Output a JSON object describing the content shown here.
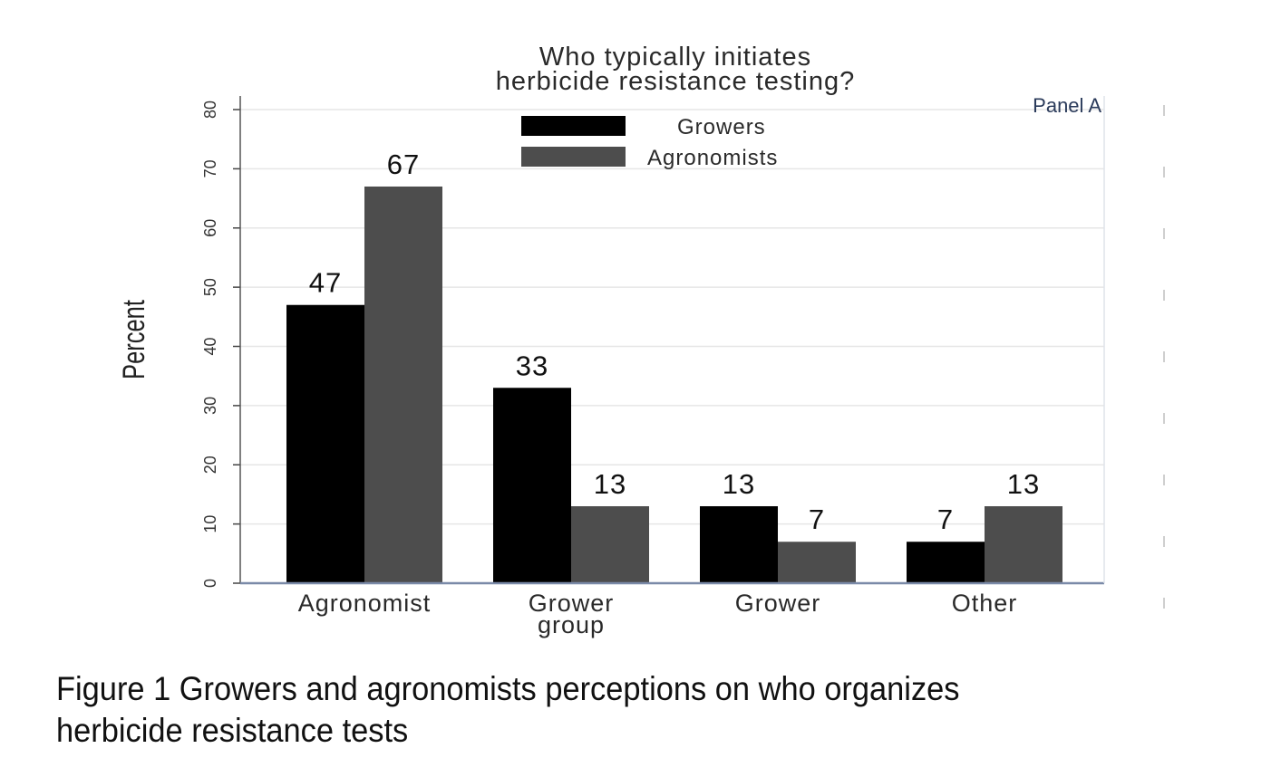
{
  "chart_data": {
    "type": "bar",
    "title_lines": [
      "Who typically initiates",
      "herbicide resistance testing?"
    ],
    "panel_label": "Panel A",
    "ylabel": "Percent",
    "xlabel": "",
    "ylim": [
      0,
      80
    ],
    "yticks": [
      "0",
      "10",
      "20",
      "30",
      "40",
      "50",
      "60",
      "70",
      "80"
    ],
    "categories": [
      [
        "Agronomist"
      ],
      [
        "Grower",
        "group"
      ],
      [
        "Grower"
      ],
      [
        "Other"
      ]
    ],
    "series": [
      {
        "name": "Growers",
        "color": "#000000",
        "values": [
          47,
          33,
          13,
          7
        ]
      },
      {
        "name": "Agronomists",
        "color": "#4d4d4d",
        "values": [
          67,
          13,
          7,
          13
        ]
      }
    ],
    "grid": true,
    "legend_position": "top-center"
  },
  "caption": {
    "line1": "Figure 1 Growers and agronomists perceptions on who organizes",
    "line2": "herbicide resistance tests"
  }
}
